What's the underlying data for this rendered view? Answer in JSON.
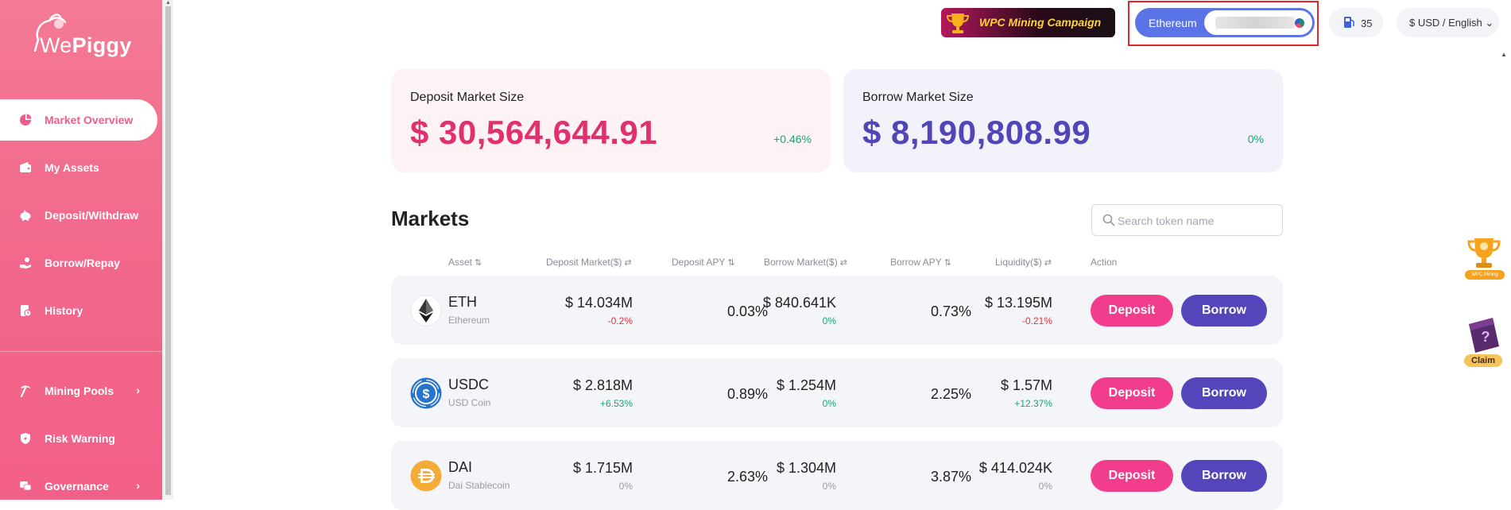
{
  "brand": {
    "name_prefix": "We",
    "name_suffix": "Piggy"
  },
  "sidebar": {
    "items": [
      {
        "label": "Market Overview",
        "icon": "pie-chart-icon",
        "active": true
      },
      {
        "label": "My Assets",
        "icon": "wallet-icon"
      },
      {
        "label": "Deposit/Withdraw",
        "icon": "piggy-bank-icon"
      },
      {
        "label": "Borrow/Repay",
        "icon": "hand-coin-icon"
      },
      {
        "label": "History",
        "icon": "history-icon"
      },
      {
        "label": "Mining Pools",
        "icon": "pickaxe-icon",
        "expandable": true
      },
      {
        "label": "Risk Warning",
        "icon": "shield-icon"
      },
      {
        "label": "Governance",
        "icon": "chat-icon",
        "expandable": true
      }
    ],
    "chevron": "›"
  },
  "header": {
    "campaign_label": "WPC Mining Campaign",
    "network_label": "Ethereum",
    "gas_value": "35",
    "currency_language": "$ USD / English",
    "currency_chevron": "⌄"
  },
  "stats": {
    "deposit": {
      "title": "Deposit Market Size",
      "value": "$ 30,564,644.91",
      "change": "+0.46%"
    },
    "borrow": {
      "title": "Borrow Market Size",
      "value": "$ 8,190,808.99",
      "change": "0%"
    }
  },
  "markets": {
    "title": "Markets",
    "search_placeholder": "Search token name",
    "columns": {
      "asset": "Asset",
      "deposit_market": "Deposit Market($)",
      "deposit_apy": "Deposit APY",
      "borrow_market": "Borrow Market($)",
      "borrow_apy": "Borrow APY",
      "liquidity": "Liquidity($)",
      "action": "Action"
    },
    "sort_glyph": "⇅",
    "swap_glyph": "⇄",
    "deposit_button": "Deposit",
    "borrow_button": "Borrow",
    "rows": [
      {
        "symbol": "ETH",
        "name": "Ethereum",
        "icon": "eth-icon",
        "deposit_market": "$ 14.034M",
        "deposit_change": "-0.2%",
        "deposit_change_dir": "neg",
        "deposit_apy": "0.03%",
        "borrow_market": "$ 840.641K",
        "borrow_change": "0%",
        "borrow_change_dir": "zero-green",
        "borrow_apy": "0.73%",
        "liquidity": "$ 13.195M",
        "liquidity_change": "-0.21%",
        "liquidity_change_dir": "neg"
      },
      {
        "symbol": "USDC",
        "name": "USD Coin",
        "icon": "usdc-icon",
        "deposit_market": "$ 2.818M",
        "deposit_change": "+6.53%",
        "deposit_change_dir": "pos",
        "deposit_apy": "0.89%",
        "borrow_market": "$ 1.254M",
        "borrow_change": "0%",
        "borrow_change_dir": "zero-green",
        "borrow_apy": "2.25%",
        "liquidity": "$ 1.57M",
        "liquidity_change": "+12.37%",
        "liquidity_change_dir": "pos"
      },
      {
        "symbol": "DAI",
        "name": "Dai Stablecoin",
        "icon": "dai-icon",
        "deposit_market": "$ 1.715M",
        "deposit_change": "0%",
        "deposit_change_dir": "zero-grey",
        "deposit_apy": "2.63%",
        "borrow_market": "$ 1.304M",
        "borrow_change": "0%",
        "borrow_change_dir": "zero-grey",
        "borrow_apy": "3.87%",
        "liquidity": "$ 414.024K",
        "liquidity_change": "0%",
        "liquidity_change_dir": "zero-grey"
      }
    ]
  },
  "floating": {
    "campaign_label": "WPC Mining Campaign",
    "claim_label": "Claim",
    "claim_mark": "?"
  },
  "colors": {
    "brand_pink": "#f23d8c",
    "borrow_purple": "#5446ba",
    "positive": "#17a673",
    "negative": "#e5343f",
    "network_blue": "#5a73e6",
    "highlight_red": "#e5232b"
  }
}
